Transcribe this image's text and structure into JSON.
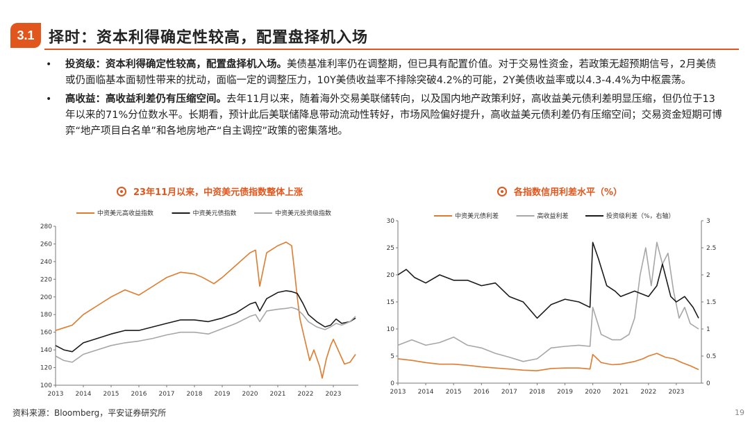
{
  "section": {
    "number": "3.1",
    "title": "择时：资本利得确定性较高，配置盘择机入场"
  },
  "bullets": [
    {
      "bold": "投资级：资本利得确定性较高，配置盘择机入场。",
      "text": "美债基准利率仍在调整期，但已具有配置价值。对于交易性资金，若政策无超预期信号，2月美债或仍面临基本面韧性带来的扰动，面临一定的调整压力，10Y美债收益率不排除突破4.2%的可能，2Y美债收益率或以4.3-4.4%为中枢震荡。"
    },
    {
      "bold": "高收益：高收益利差仍有压缩空间。",
      "text": "去年11月以来，随着海外交易美联储转向，以及国内地产政策利好，高收益美元债利差明显压缩，但仍位于13年以来的71%分位数水平。长期看，预计此后美联储降息带动流动性转好，市场风险偏好提升，高收益美元债利差仍有压缩空间；交易资金短期可博弈“地产项目白名单”和各地房地产“自主调控”政策的密集落地。"
    }
  ],
  "colors": {
    "accent": "#e0561c",
    "orange": "#e07b2e",
    "black": "#1a1a1a",
    "gray": "#a6a6a6"
  },
  "chart_data": [
    {
      "type": "line",
      "title": "23年11月以来，中资美元债指数整体上涨",
      "xlabel": "",
      "ylabel": "",
      "x_ticks": [
        "2013",
        "2014",
        "2015",
        "2016",
        "2017",
        "2018",
        "2019",
        "2020",
        "2021",
        "2022",
        "2023"
      ],
      "y_ticks": [
        "100",
        "120",
        "140",
        "160",
        "180",
        "200",
        "220",
        "240",
        "260",
        "280"
      ],
      "xlim": [
        2013.0,
        2023.9
      ],
      "ylim": [
        100,
        280
      ],
      "legend_position": "top",
      "series": [
        {
          "name": "中资美元高收益指数",
          "color": "#e07b2e",
          "x": [
            2013.0,
            2013.3,
            2013.6,
            2014.0,
            2014.5,
            2015.0,
            2015.5,
            2016.0,
            2016.5,
            2017.0,
            2017.5,
            2018.0,
            2018.3,
            2018.7,
            2019.0,
            2019.5,
            2020.0,
            2020.2,
            2020.35,
            2020.6,
            2021.0,
            2021.3,
            2021.5,
            2021.6,
            2021.7,
            2021.8,
            2022.0,
            2022.15,
            2022.3,
            2022.5,
            2022.6,
            2022.75,
            2022.9,
            2023.0,
            2023.2,
            2023.4,
            2023.6,
            2023.8
          ],
          "y": [
            162,
            165,
            168,
            180,
            190,
            200,
            208,
            202,
            212,
            222,
            228,
            226,
            222,
            215,
            222,
            236,
            250,
            253,
            212,
            250,
            258,
            262,
            258,
            230,
            200,
            175,
            148,
            128,
            140,
            122,
            108,
            130,
            145,
            152,
            138,
            124,
            126,
            135
          ]
        },
        {
          "name": "中资美元债指数",
          "color": "#1a1a1a",
          "x": [
            2013.0,
            2013.3,
            2013.6,
            2014.0,
            2014.5,
            2015.0,
            2015.5,
            2016.0,
            2016.5,
            2017.0,
            2017.5,
            2018.0,
            2018.5,
            2019.0,
            2019.5,
            2020.0,
            2020.2,
            2020.35,
            2020.6,
            2021.0,
            2021.3,
            2021.5,
            2021.7,
            2021.9,
            2022.1,
            2022.4,
            2022.7,
            2022.9,
            2023.1,
            2023.3,
            2023.6,
            2023.8
          ],
          "y": [
            145,
            140,
            138,
            148,
            153,
            158,
            162,
            162,
            166,
            170,
            174,
            174,
            172,
            176,
            182,
            192,
            194,
            184,
            198,
            205,
            207,
            206,
            204,
            193,
            180,
            172,
            166,
            168,
            175,
            170,
            172,
            176
          ]
        },
        {
          "name": "中资美元投资级指数",
          "color": "#a6a6a6",
          "x": [
            2013.0,
            2013.3,
            2013.6,
            2014.0,
            2014.5,
            2015.0,
            2015.5,
            2016.0,
            2016.5,
            2017.0,
            2017.5,
            2018.0,
            2018.5,
            2019.0,
            2019.5,
            2020.0,
            2020.2,
            2020.35,
            2020.6,
            2021.0,
            2021.3,
            2021.5,
            2021.7,
            2021.9,
            2022.1,
            2022.4,
            2022.7,
            2022.9,
            2023.1,
            2023.3,
            2023.6,
            2023.8
          ],
          "y": [
            133,
            128,
            126,
            135,
            140,
            145,
            148,
            150,
            153,
            157,
            160,
            160,
            158,
            164,
            170,
            178,
            180,
            172,
            184,
            186,
            187,
            188,
            186,
            180,
            172,
            166,
            163,
            166,
            170,
            168,
            172,
            178
          ]
        }
      ]
    },
    {
      "type": "line",
      "title": "各指数信用利差水平（%）",
      "xlabel": "",
      "ylabel": "",
      "x_ticks": [
        "2013",
        "2014",
        "2015",
        "2016",
        "2017",
        "2018",
        "2019",
        "2020",
        "2021",
        "2022",
        "2023"
      ],
      "y_ticks_left": [
        "0",
        "5",
        "10",
        "15",
        "20",
        "25",
        "30"
      ],
      "y_ticks_right": [
        "0",
        "0.5",
        "1",
        "1.5",
        "2",
        "2.5",
        "3"
      ],
      "xlim": [
        2013.0,
        2023.9
      ],
      "ylim_left": [
        0,
        30
      ],
      "ylim_right": [
        0,
        3
      ],
      "legend_position": "top",
      "series": [
        {
          "name": "中资美元债利差",
          "axis": "left",
          "color": "#e07b2e",
          "x": [
            2013.0,
            2013.5,
            2014.0,
            2014.5,
            2015.0,
            2015.5,
            2016.0,
            2016.5,
            2017.0,
            2017.5,
            2018.0,
            2018.5,
            2019.0,
            2019.5,
            2019.9,
            2020.0,
            2020.3,
            2020.7,
            2021.0,
            2021.5,
            2021.8,
            2022.0,
            2022.3,
            2022.6,
            2022.9,
            2023.2,
            2023.5,
            2023.8
          ],
          "y": [
            4.5,
            4.2,
            3.8,
            3.5,
            3.5,
            3.3,
            3.0,
            2.8,
            2.6,
            2.4,
            2.3,
            2.7,
            2.8,
            2.8,
            2.6,
            5.3,
            3.8,
            3.4,
            3.5,
            4.0,
            4.5,
            5.0,
            5.5,
            4.8,
            4.5,
            3.8,
            3.2,
            2.5
          ]
        },
        {
          "name": "高收益利差",
          "axis": "left",
          "color": "#a6a6a6",
          "x": [
            2013.0,
            2013.5,
            2014.0,
            2014.5,
            2015.0,
            2015.5,
            2016.0,
            2016.5,
            2017.0,
            2017.5,
            2018.0,
            2018.5,
            2019.0,
            2019.5,
            2019.9,
            2020.0,
            2020.3,
            2020.7,
            2021.0,
            2021.3,
            2021.5,
            2021.7,
            2021.9,
            2022.1,
            2022.3,
            2022.5,
            2022.7,
            2022.9,
            2023.1,
            2023.3,
            2023.5,
            2023.8
          ],
          "y": [
            7.0,
            8.0,
            7.0,
            7.5,
            8.5,
            7.0,
            6.5,
            5.5,
            4.8,
            4.0,
            4.5,
            6.5,
            6.8,
            7.0,
            6.8,
            14.0,
            9.0,
            8.0,
            8.0,
            9.0,
            12.0,
            20.0,
            25.0,
            18.0,
            26.0,
            22.0,
            24.0,
            17.0,
            12.0,
            14.0,
            11.0,
            10.0
          ]
        },
        {
          "name": "投资级利差（%，右轴）",
          "axis": "right",
          "color": "#1a1a1a",
          "x": [
            2013.0,
            2013.3,
            2013.6,
            2014.0,
            2014.5,
            2015.0,
            2015.5,
            2016.0,
            2016.5,
            2017.0,
            2017.5,
            2018.0,
            2018.5,
            2019.0,
            2019.5,
            2019.9,
            2020.0,
            2020.2,
            2020.5,
            2020.8,
            2021.0,
            2021.5,
            2022.0,
            2022.3,
            2022.5,
            2022.8,
            2023.0,
            2023.3,
            2023.6,
            2023.8
          ],
          "y": [
            2.0,
            2.1,
            1.95,
            1.85,
            2.0,
            1.9,
            1.9,
            1.8,
            1.85,
            1.6,
            1.5,
            1.2,
            1.45,
            1.55,
            1.5,
            1.4,
            2.6,
            2.3,
            1.8,
            1.7,
            1.6,
            1.7,
            1.6,
            1.8,
            2.2,
            1.6,
            1.5,
            1.6,
            1.4,
            1.2
          ]
        }
      ]
    }
  ],
  "source": "资料来源：Bloomberg，平安证券研究所",
  "page_number": "19"
}
